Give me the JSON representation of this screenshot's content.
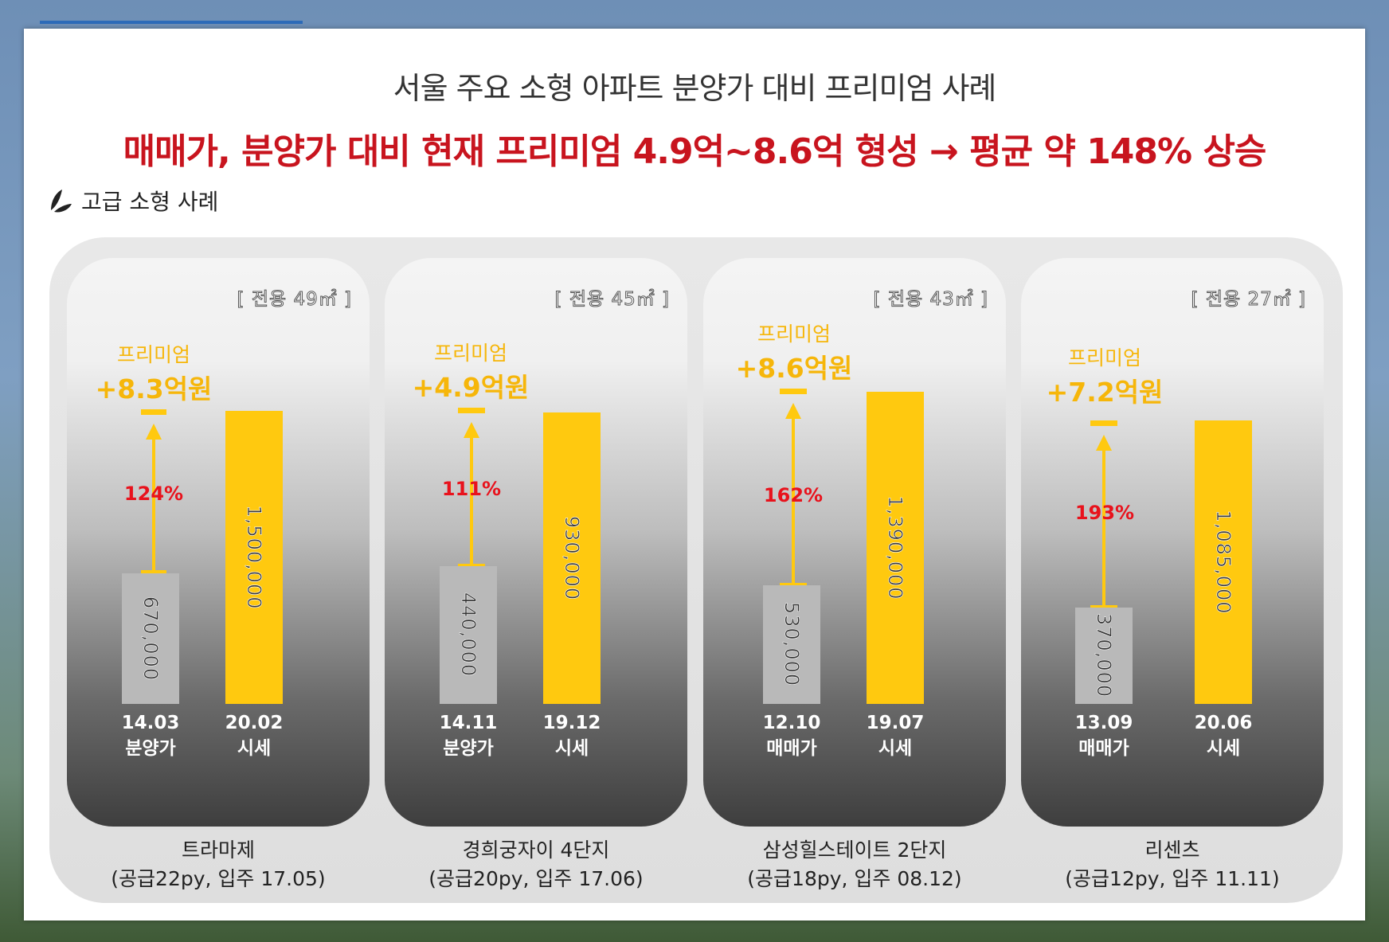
{
  "title": "서울 주요 소형 아파트 분양가 대비 프리미엄 사례",
  "subtitle": "매매가, 분양가 대비 현재 프리미엄 4.9억~8.6억 형성 → 평균 약 148% 상승",
  "section_label": "고급 소형 사례",
  "colors": {
    "premium": "#f6b60a",
    "bar_current": "#ffc90f",
    "bar_base": "#b9b9b9",
    "percent": "#e8121c",
    "subtitle": "#c8141e"
  },
  "chart_data": [
    {
      "type": "bar",
      "name": "트라마제",
      "info": "(공급22py, 입주 17.05)",
      "area": "[ 전용 49㎡ ]",
      "premium_label": "프리미엄",
      "premium": "+8.3억원",
      "percent": "124%",
      "categories": [
        {
          "date": "14.03",
          "label": "분양가",
          "value": 670000,
          "value_text": "670,000"
        },
        {
          "date": "20.02",
          "label": "시세",
          "value": 1500000,
          "value_text": "1,500,000"
        }
      ]
    },
    {
      "type": "bar",
      "name": "경희궁자이 4단지",
      "info": "(공급20py, 입주 17.06)",
      "area": "[ 전용 45㎡ ]",
      "premium_label": "프리미엄",
      "premium": "+4.9억원",
      "percent": "111%",
      "categories": [
        {
          "date": "14.11",
          "label": "분양가",
          "value": 440000,
          "value_text": "440,000"
        },
        {
          "date": "19.12",
          "label": "시세",
          "value": 930000,
          "value_text": "930,000"
        }
      ]
    },
    {
      "type": "bar",
      "name": "삼성힐스테이트 2단지",
      "info": "(공급18py, 입주 08.12)",
      "area": "[ 전용 43㎡ ]",
      "premium_label": "프리미엄",
      "premium": "+8.6억원",
      "percent": "162%",
      "categories": [
        {
          "date": "12.10",
          "label": "매매가",
          "value": 530000,
          "value_text": "530,000"
        },
        {
          "date": "19.07",
          "label": "시세",
          "value": 1390000,
          "value_text": "1,390,000"
        }
      ]
    },
    {
      "type": "bar",
      "name": "리센츠",
      "info": "(공급12py, 입주 11.11)",
      "area": "[ 전용 27㎡ ]",
      "premium_label": "프리미엄",
      "premium": "+7.2억원",
      "percent": "193%",
      "categories": [
        {
          "date": "13.09",
          "label": "매매가",
          "value": 370000,
          "value_text": "370,000"
        },
        {
          "date": "20.06",
          "label": "시세",
          "value": 1085000,
          "value_text": "1,085,000"
        }
      ]
    }
  ]
}
